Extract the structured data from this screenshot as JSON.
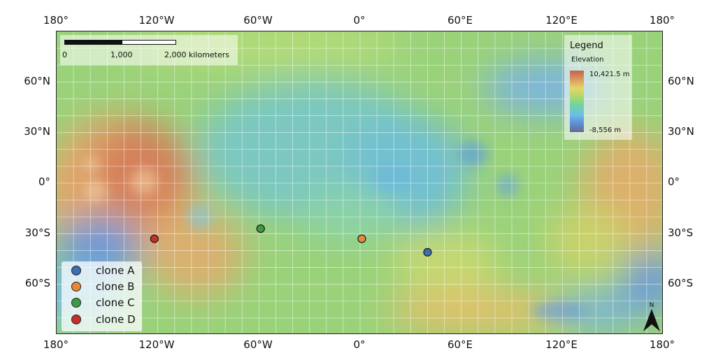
{
  "map": {
    "top_labels": [
      "180°",
      "120°W",
      "60°W",
      "0°",
      "60°E",
      "120°E",
      "180°"
    ],
    "bottom_labels": [
      "180°",
      "120°W",
      "60°W",
      "0°",
      "60°E",
      "120°E",
      "180°"
    ],
    "left_labels": [
      "60°N",
      "30°N",
      "0°",
      "30°S",
      "60°S"
    ],
    "right_labels": [
      "60°N",
      "30°N",
      "0°",
      "30°S",
      "60°S"
    ],
    "extent": {
      "lon": [
        -180,
        180
      ],
      "lat": [
        -90,
        90
      ]
    },
    "graticule_step_deg": 10
  },
  "scale_bar": {
    "ticks": [
      "0",
      "1,000",
      "2,000 kilometers"
    ]
  },
  "legend": {
    "title": "Legend",
    "subtitle": "Elevation",
    "max_label": "10,421.5 m",
    "min_label": "-8,556 m",
    "ramp_colors": [
      "#c8604c",
      "#d99a5c",
      "#e6d46a",
      "#a8d86c",
      "#6fd2a6",
      "#6fbfe6",
      "#5d8ed8",
      "#6a6a8a"
    ]
  },
  "points": [
    {
      "name": "clone A",
      "color": "#3a6fb0",
      "lon": 40,
      "lat": -41
    },
    {
      "name": "clone B",
      "color": "#e8893a",
      "lon": 1,
      "lat": -33
    },
    {
      "name": "clone C",
      "color": "#3f9a42",
      "lon": -59,
      "lat": -27
    },
    {
      "name": "clone D",
      "color": "#c4302b",
      "lon": -122,
      "lat": -33
    }
  ],
  "north_arrow": {
    "label": "N"
  }
}
